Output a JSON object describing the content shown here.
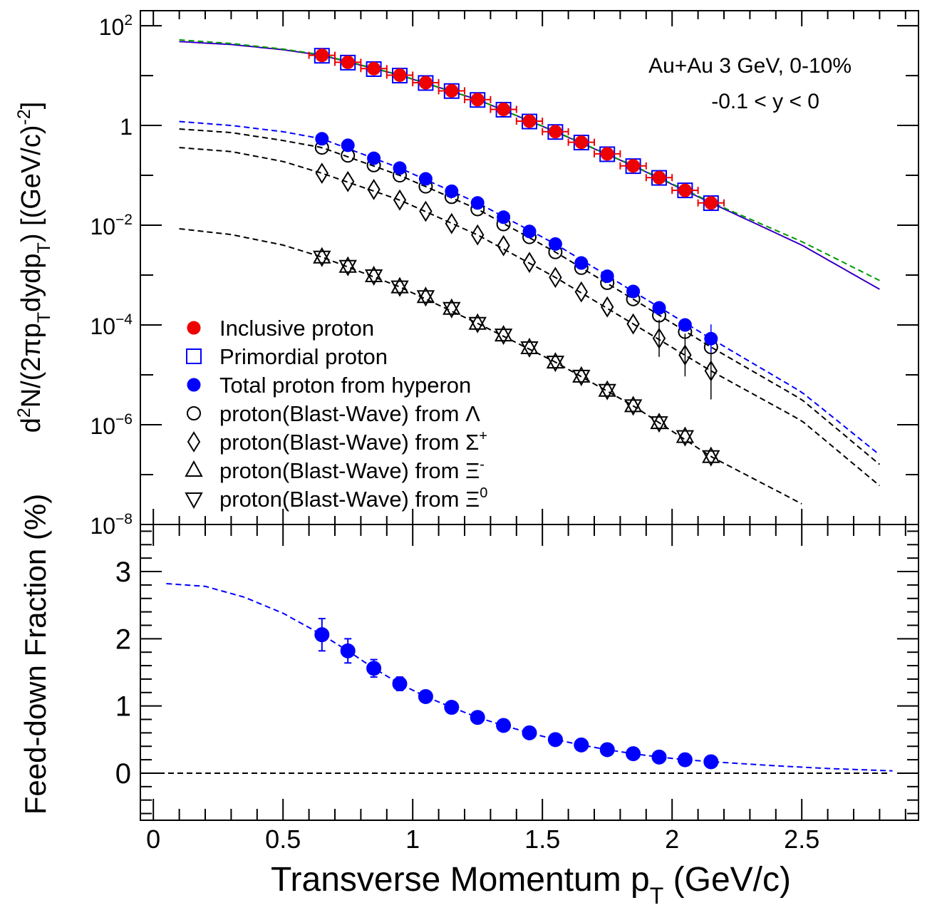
{
  "chart_data": [
    {
      "type": "scatter",
      "panel": "top",
      "yscale": "log",
      "ylabel_parts": [
        "d",
        "2",
        "N/(2πp",
        "T",
        "dydp",
        "T",
        ") [(GeV/c)",
        "-2",
        "]"
      ],
      "xlim": [
        -0.05,
        2.95
      ],
      "ylim": [
        1e-08,
        200
      ],
      "ytick_labels": [
        {
          "value": 100,
          "base": "10",
          "exp": "2"
        },
        {
          "value": 1,
          "base": "1",
          "exp": ""
        },
        {
          "value": 0.01,
          "base": "10",
          "exp": "−2"
        },
        {
          "value": 0.0001,
          "base": "10",
          "exp": "−4"
        },
        {
          "value": 1e-06,
          "base": "10",
          "exp": "−6"
        },
        {
          "value": 1e-08,
          "base": "10",
          "exp": "−8"
        }
      ],
      "annotations": [
        "Au+Au 3 GeV, 0-10%",
        "-0.1 < y < 0"
      ],
      "legend": [
        {
          "marker": "filled-circle-red",
          "text": "Inclusive proton",
          "sup": ""
        },
        {
          "marker": "open-square-blue",
          "text": "Primordial proton",
          "sup": ""
        },
        {
          "marker": "filled-circle-blue",
          "text": "Total proton from hyperon",
          "sup": ""
        },
        {
          "marker": "open-circle",
          "text": "proton(Blast-Wave) from Λ",
          "sup": ""
        },
        {
          "marker": "open-diamond",
          "text": "proton(Blast-Wave) from Σ",
          "sup": "+"
        },
        {
          "marker": "open-triangle-up",
          "text": "proton(Blast-Wave) from Ξ",
          "sup": "-"
        },
        {
          "marker": "open-triangle-down",
          "text": "proton(Blast-Wave) from Ξ",
          "sup": "0"
        }
      ],
      "x": [
        0.65,
        0.75,
        0.85,
        0.95,
        1.05,
        1.15,
        1.25,
        1.35,
        1.45,
        1.55,
        1.65,
        1.75,
        1.85,
        1.95,
        2.05,
        2.15
      ],
      "series": [
        {
          "name": "Inclusive proton",
          "color": "#ff0000",
          "values": [
            25.5,
            18.5,
            13.8,
            10.2,
            7.2,
            4.95,
            3.3,
            2.1,
            1.22,
            0.75,
            0.46,
            0.27,
            0.155,
            0.09,
            0.05,
            0.028
          ]
        },
        {
          "name": "Primordial proton",
          "color": "#0000ff",
          "values": [
            25.0,
            18.2,
            13.5,
            10.0,
            7.1,
            4.9,
            3.25,
            2.07,
            1.2,
            0.74,
            0.455,
            0.265,
            0.153,
            0.089,
            0.05,
            0.0277
          ]
        },
        {
          "name": "Total proton from hyperon",
          "color": "#0000ff",
          "values": [
            0.54,
            0.4,
            0.22,
            0.14,
            0.085,
            0.048,
            0.028,
            0.0145,
            0.0075,
            0.0042,
            0.00175,
            0.00095,
            0.00047,
            0.00022,
            0.0001,
            5.32e-05
          ]
        },
        {
          "name": "proton(Blast-Wave) from Λ",
          "color": "#000000",
          "values": [
            0.36,
            0.25,
            0.16,
            0.1,
            0.06,
            0.037,
            0.021,
            0.0105,
            0.0058,
            0.0029,
            0.0014,
            0.0007,
            0.00033,
            0.000156,
            7.3e-05,
            3.6e-05
          ]
        },
        {
          "name": "proton(Blast-Wave) from Σ+",
          "color": "#000000",
          "values": [
            0.11,
            0.075,
            0.052,
            0.032,
            0.019,
            0.0108,
            0.0064,
            0.0039,
            0.0018,
            0.0009,
            0.00046,
            0.00023,
            0.000105,
            5.4e-05,
            2.5e-05,
            1.2e-05
          ]
        },
        {
          "name": "proton(Blast-Wave) from Ξ- / Ξ0",
          "color": "#000000",
          "values": [
            0.0023,
            0.0015,
            0.00097,
            0.00058,
            0.00037,
            0.000215,
            0.000108,
            6.3e-05,
            3.5e-05,
            1.8e-05,
            9.4e-06,
            4.9e-06,
            2.4e-06,
            1.1e-06,
            5.8e-07,
            2.3e-07
          ]
        }
      ]
    },
    {
      "type": "scatter",
      "panel": "bottom",
      "yscale": "linear",
      "ylabel": "Feed-down Fraction (%)",
      "xlabel_parts": [
        "Transverse Momentum p",
        "T",
        " (GeV/c)"
      ],
      "xlim": [
        -0.05,
        2.95
      ],
      "ylim": [
        -0.7,
        3.7
      ],
      "x_ticks": [
        0,
        0.5,
        1,
        1.5,
        2,
        2.5
      ],
      "x_tick_labels": [
        "0",
        "0.5",
        "1",
        "1.5",
        "2",
        "2.5"
      ],
      "y_ticks": [
        0,
        1,
        2,
        3
      ],
      "y_tick_labels": [
        "0",
        "1",
        "2",
        "3"
      ],
      "x": [
        0.65,
        0.75,
        0.85,
        0.95,
        1.05,
        1.15,
        1.25,
        1.35,
        1.45,
        1.55,
        1.65,
        1.75,
        1.85,
        1.95,
        2.05,
        2.15
      ],
      "series": [
        {
          "name": "Feed-down fraction",
          "color": "#0000ff",
          "values": [
            2.06,
            1.82,
            1.56,
            1.33,
            1.14,
            0.98,
            0.83,
            0.71,
            0.6,
            0.5,
            0.42,
            0.35,
            0.29,
            0.24,
            0.2,
            0.17
          ],
          "errors": [
            0.24,
            0.18,
            0.13,
            0.1,
            0.06,
            0.05,
            0.04,
            0.03,
            0.03,
            0.03,
            0.02,
            0.02,
            0.02,
            0.02,
            0.02,
            0.02
          ]
        }
      ]
    }
  ]
}
